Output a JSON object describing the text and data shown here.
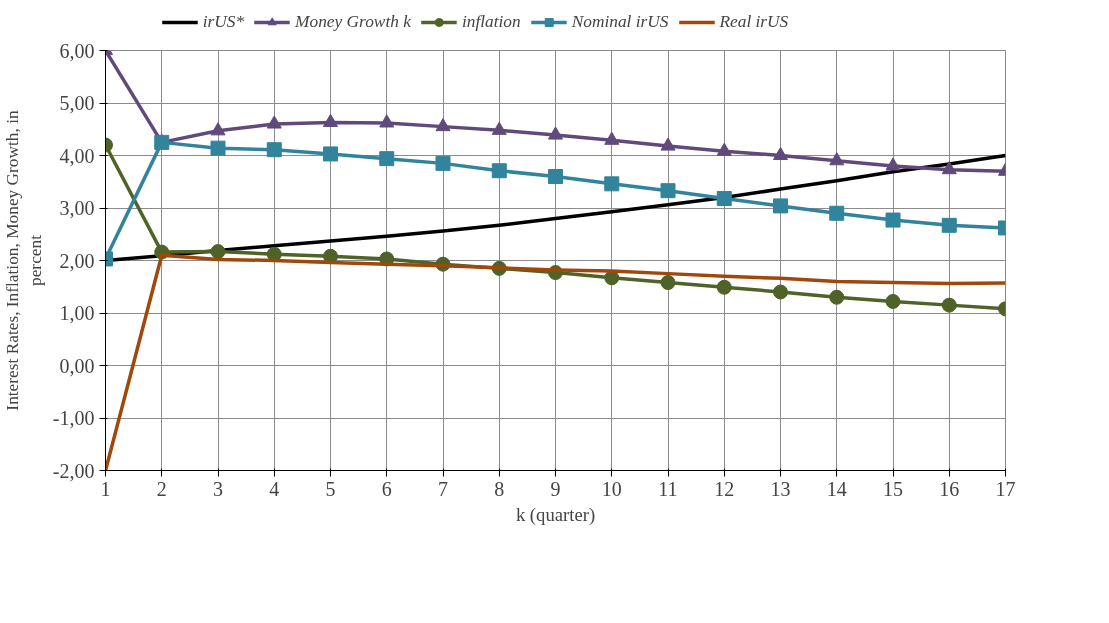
{
  "chart_data": {
    "type": "line",
    "xlabel": "k (quarter)",
    "ylabel": "Interest Rates, Inflation, Money Growth, in percent",
    "x": [
      1,
      2,
      3,
      4,
      5,
      6,
      7,
      8,
      9,
      10,
      11,
      12,
      13,
      14,
      15,
      16,
      17
    ],
    "series": [
      {
        "name": "irUS*",
        "color": "#000000",
        "marker": "none",
        "values": [
          2.0,
          2.09,
          2.19,
          2.28,
          2.37,
          2.46,
          2.56,
          2.67,
          2.8,
          2.93,
          3.06,
          3.2,
          3.36,
          3.52,
          3.69,
          3.84,
          4.0
        ]
      },
      {
        "name": "Money Growth k",
        "color": "#604a7b",
        "marker": "triangle",
        "values": [
          6.0,
          4.25,
          4.47,
          4.6,
          4.63,
          4.62,
          4.55,
          4.48,
          4.39,
          4.29,
          4.18,
          4.08,
          4.0,
          3.9,
          3.8,
          3.73,
          3.7
        ]
      },
      {
        "name": "inflation",
        "color": "#4f6228",
        "marker": "circle",
        "values": [
          4.2,
          2.16,
          2.17,
          2.12,
          2.08,
          2.03,
          1.93,
          1.85,
          1.77,
          1.67,
          1.58,
          1.49,
          1.4,
          1.3,
          1.22,
          1.15,
          1.08
        ]
      },
      {
        "name": "Nominal irUS",
        "color": "#31849b",
        "marker": "square",
        "values": [
          2.03,
          4.25,
          4.14,
          4.11,
          4.03,
          3.94,
          3.85,
          3.71,
          3.6,
          3.46,
          3.33,
          3.18,
          3.04,
          2.9,
          2.77,
          2.67,
          2.62
        ]
      },
      {
        "name": "Real irUS",
        "color": "#a0480a",
        "marker": "none",
        "values": [
          -2.0,
          2.1,
          2.02,
          2.0,
          1.96,
          1.93,
          1.9,
          1.86,
          1.82,
          1.8,
          1.75,
          1.7,
          1.66,
          1.6,
          1.58,
          1.56,
          1.57
        ]
      }
    ],
    "xlim": [
      1,
      17
    ],
    "xticks": [
      1,
      2,
      3,
      4,
      5,
      6,
      7,
      8,
      9,
      10,
      11,
      12,
      13,
      14,
      15,
      16,
      17
    ],
    "ylim": [
      -2,
      6
    ],
    "yticks": [
      {
        "value": -2,
        "label": "-2,00"
      },
      {
        "value": -1,
        "label": "-1,00"
      },
      {
        "value": 0,
        "label": "0,00"
      },
      {
        "value": 1,
        "label": "1,00"
      },
      {
        "value": 2,
        "label": "2,00"
      },
      {
        "value": 3,
        "label": "3,00"
      },
      {
        "value": 4,
        "label": "4,00"
      },
      {
        "value": 5,
        "label": "5,00"
      },
      {
        "value": 6,
        "label": "6,00"
      }
    ],
    "grid": true,
    "legend": "top",
    "line_style": "solid"
  }
}
